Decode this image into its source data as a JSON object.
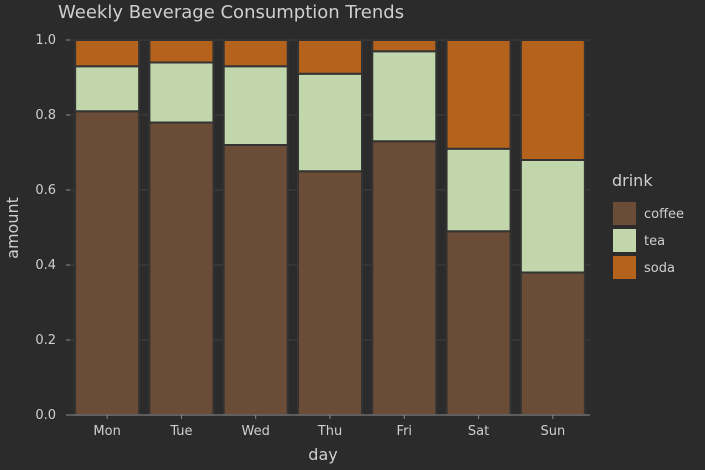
{
  "chart_data": {
    "type": "bar",
    "stacked": true,
    "title": "Weekly Beverage Consumption Trends",
    "xlabel": "day",
    "ylabel": "amount",
    "categories": [
      "Mon",
      "Tue",
      "Wed",
      "Thu",
      "Fri",
      "Sat",
      "Sun"
    ],
    "y_ticks": [
      "0.0",
      "0.2",
      "0.4",
      "0.6",
      "0.8",
      "1.0"
    ],
    "ylim": [
      0,
      1
    ],
    "grid": true,
    "legend": {
      "title": "drink",
      "position": "right"
    },
    "series": [
      {
        "name": "coffee",
        "color": "#6b4c36",
        "values": [
          0.81,
          0.78,
          0.72,
          0.65,
          0.73,
          0.49,
          0.38
        ]
      },
      {
        "name": "tea",
        "color": "#c2d6ab",
        "values": [
          0.12,
          0.16,
          0.21,
          0.26,
          0.24,
          0.22,
          0.3
        ]
      },
      {
        "name": "soda",
        "color": "#b5621c",
        "values": [
          0.07,
          0.06,
          0.07,
          0.09,
          0.03,
          0.29,
          0.32
        ]
      }
    ]
  }
}
